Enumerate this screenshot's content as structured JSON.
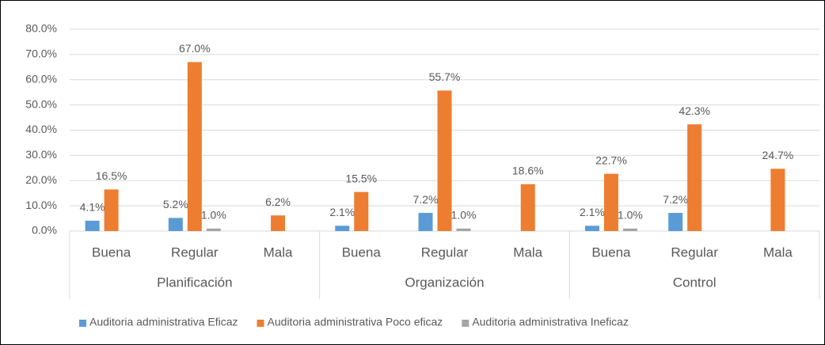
{
  "chart_data": {
    "type": "bar",
    "categories": [
      "Buena",
      "Regular",
      "Mala",
      "Buena",
      "Regular",
      "Mala",
      "Buena",
      "Regular",
      "Mala"
    ],
    "groups": [
      "Planificación",
      "Organización",
      "Control"
    ],
    "series": [
      {
        "name": "Auditoria administrativa Eficaz",
        "color": "#5b9bd5",
        "values": [
          4.1,
          5.2,
          null,
          2.1,
          7.2,
          null,
          2.1,
          7.2,
          null
        ],
        "value_labels": [
          "4.1%",
          "5.2%",
          null,
          "2.1%",
          "7.2%",
          null,
          "2.1%",
          "7.2%",
          null
        ]
      },
      {
        "name": "Auditoria administrativa Poco eficaz",
        "color": "#ed7d31",
        "values": [
          16.5,
          67.0,
          6.2,
          15.5,
          55.7,
          18.6,
          22.7,
          42.3,
          24.7
        ],
        "value_labels": [
          "16.5%",
          "67.0%",
          "6.2%",
          "15.5%",
          "55.7%",
          "18.6%",
          "22.7%",
          "42.3%",
          "24.7%"
        ]
      },
      {
        "name": "Auditoria administrativa Ineficaz",
        "color": "#a5a5a5",
        "values": [
          null,
          1.0,
          null,
          null,
          1.0,
          null,
          1.0,
          null,
          null
        ],
        "value_labels": [
          null,
          "1.0%",
          null,
          null,
          "1.0%",
          null,
          "1.0%",
          null,
          null
        ]
      }
    ],
    "ylim": [
      0,
      80
    ],
    "yticks": [
      {
        "value": 0,
        "label": "0.0%"
      },
      {
        "value": 10,
        "label": "10.0%"
      },
      {
        "value": 20,
        "label": "20.0%"
      },
      {
        "value": 30,
        "label": "30.0%"
      },
      {
        "value": 40,
        "label": "40.0%"
      },
      {
        "value": 50,
        "label": "50.0%"
      },
      {
        "value": 60,
        "label": "60.0%"
      },
      {
        "value": 70,
        "label": "70.0%"
      },
      {
        "value": 80,
        "label": "80.0%"
      }
    ],
    "grid": true,
    "legend": "bottom"
  }
}
